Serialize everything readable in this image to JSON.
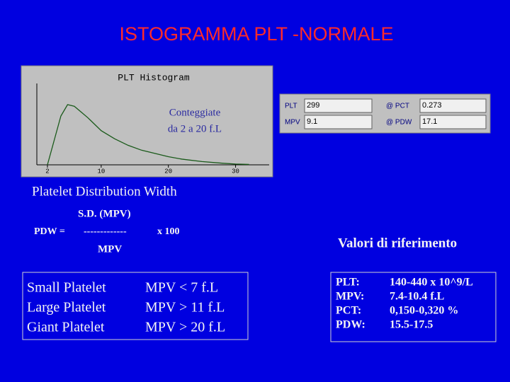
{
  "title": "ISTOGRAMMA PLT -NORMALE",
  "chart_data": {
    "type": "line",
    "title": "PLT Histogram",
    "annotations": [
      "Conteggiate",
      "da 2 a 20 f.L"
    ],
    "x": [
      2,
      3,
      4,
      5,
      6,
      7,
      8,
      9,
      10,
      12,
      14,
      16,
      18,
      20,
      22,
      25,
      28,
      30,
      32
    ],
    "values": [
      0,
      30,
      60,
      74,
      72,
      65,
      58,
      50,
      42,
      32,
      24,
      18,
      14,
      10,
      7,
      4,
      2,
      1,
      0.5
    ],
    "color": "#1a5a1a",
    "xlim": [
      0,
      35
    ],
    "ylim": [
      0,
      100
    ],
    "xticks": [
      2,
      10,
      20,
      30
    ]
  },
  "panel": {
    "fields": [
      {
        "label": "PLT",
        "value": "299"
      },
      {
        "label": "@ PCT",
        "value": "0.273"
      },
      {
        "label": "MPV",
        "value": "9.1"
      },
      {
        "label": "@ PDW",
        "value": "17.1"
      }
    ]
  },
  "pdw": {
    "heading": "Platelet Distribution Width",
    "numerator": "S.D. (MPV)",
    "lhs": "PDW =",
    "bar": "-------------",
    "multiplier": "x 100",
    "denominator": "MPV"
  },
  "sizes": {
    "rows": [
      [
        "Small Platelet",
        "MPV <  7 f.L"
      ],
      [
        "Large Platelet",
        "MPV > 11 f.L"
      ],
      [
        "Giant Platelet",
        "MPV > 20 f.L"
      ]
    ]
  },
  "reference": {
    "title": "Valori di riferimento",
    "rows": [
      [
        "PLT:",
        "140-440 x 10^9/L"
      ],
      [
        "MPV:",
        "7.4-10.4 f.L"
      ],
      [
        "PCT:",
        "0,150-0,320 %"
      ],
      [
        "PDW:",
        "15.5-17.5"
      ]
    ]
  }
}
